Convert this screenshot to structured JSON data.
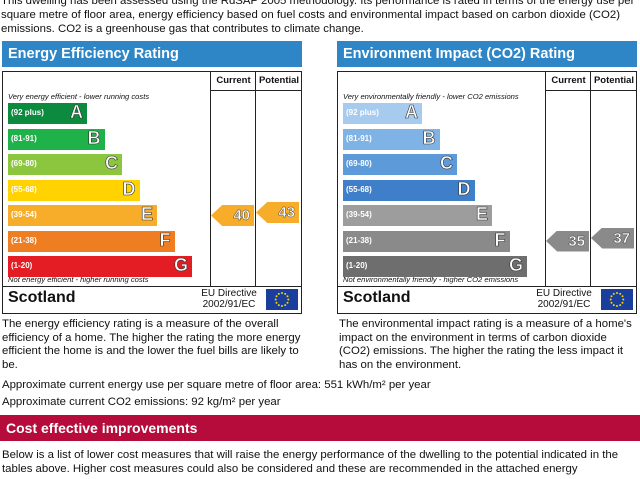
{
  "intro": "This dwelling has been assessed using the RdSAP 2005 methodology. Its performance is rated in terms of the energy use per square metre of floor area, energy efficiency based on fuel costs and environmental impact based on carbon dioxide (CO2) emissions. CO2 is a greenhouse gas that contributes to climate change.",
  "colors": {
    "energy_header": "#2f86c6",
    "cost_header": "#b50c3c",
    "energy_bands": [
      "#0c8a3e",
      "#1fb24a",
      "#8cc63f",
      "#ffd200",
      "#f7ad2a",
      "#ef7d22",
      "#e31d23"
    ],
    "env_bands": [
      "#a6cbee",
      "#7fb2e5",
      "#5d9ad9",
      "#3f7fc9",
      "#9d9d9d",
      "#8a8a8a",
      "#6e6e6e"
    ],
    "energy_current": "#f7ad2a",
    "energy_potential": "#f7ad2a",
    "env_current": "#8a8a8a",
    "env_potential": "#8a8a8a"
  },
  "energy": {
    "title": "Energy Efficiency Rating",
    "col_current": "Current",
    "col_potential": "Potential",
    "top_note": "Very energy efficient - lower running costs",
    "bottom_note": "Not energy efficient - higher running costs",
    "bands": [
      {
        "range": "(92 plus)",
        "letter": "A"
      },
      {
        "range": "(81-91)",
        "letter": "B"
      },
      {
        "range": "(69-80)",
        "letter": "C"
      },
      {
        "range": "(55-68)",
        "letter": "D"
      },
      {
        "range": "(39-54)",
        "letter": "E"
      },
      {
        "range": "(21-38)",
        "letter": "F"
      },
      {
        "range": "(1-20)",
        "letter": "G"
      }
    ],
    "current": "40",
    "potential": "43",
    "current_band_index": 4,
    "potential_band_index": 4,
    "region": "Scotland",
    "directive": "EU Directive 2002/91/EC",
    "description": "The energy efficiency rating is a measure of the overall efficiency of a home. The higher the rating the more energy efficient the home is and the lower the fuel bills are likely to be."
  },
  "environment": {
    "title": "Environment Impact (CO2) Rating",
    "col_current": "Current",
    "col_potential": "Potential",
    "top_note": "Very environmentally friendly - lower CO2 emissions",
    "bottom_note": "Not environmentally friendly - higher CO2 emissions",
    "bands": [
      {
        "range": "(92 plus)",
        "letter": "A"
      },
      {
        "range": "(81-91)",
        "letter": "B"
      },
      {
        "range": "(69-80)",
        "letter": "C"
      },
      {
        "range": "(55-68)",
        "letter": "D"
      },
      {
        "range": "(39-54)",
        "letter": "E"
      },
      {
        "range": "(21-38)",
        "letter": "F"
      },
      {
        "range": "(1-20)",
        "letter": "G"
      }
    ],
    "current": "35",
    "potential": "37",
    "current_band_index": 5,
    "potential_band_index": 5,
    "region": "Scotland",
    "directive": "EU Directive 2002/91/EC",
    "description": "The environmental impact rating is a measure of a home's impact on the environment in terms of carbon dioxide (CO2) emissions. The higher the rating the less impact it has on the environment."
  },
  "energy_use_line": "Approximate current energy use per square metre of floor area: 551 kWh/m² per year",
  "co2_line": "Approximate current CO2 emissions: 92 kg/m² per year",
  "cost_header": "Cost effective improvements",
  "cost_text": "Below is a list of lower cost measures that will raise the energy performance of the dwelling to the potential indicated in the tables above. Higher cost measures could also be considered and these are recommended in the attached energy"
}
